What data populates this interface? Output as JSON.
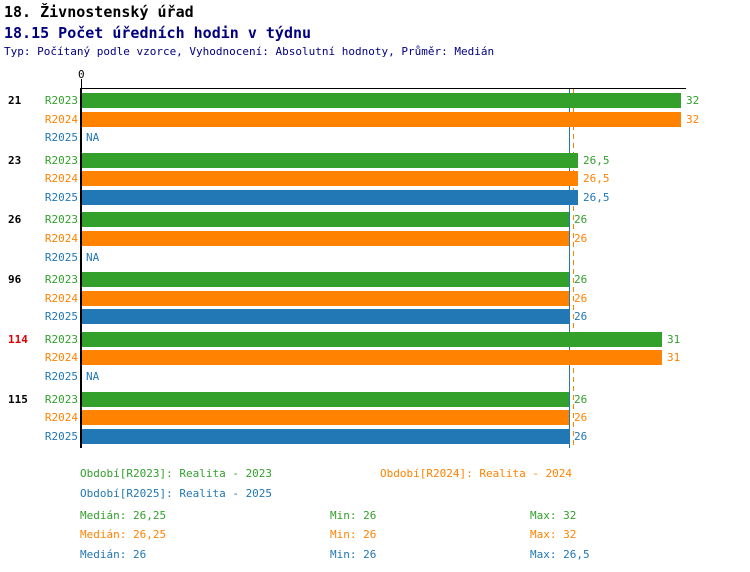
{
  "header": {
    "title": "18. Živnostenský úřad",
    "subtitle": "18.15 Počet úředních hodin v týdnu",
    "meta": "Typ: Počítaný podle vzorce, Vyhodnocení: Absolutní hodnoty, Průměr: Medián"
  },
  "chart_data": {
    "type": "bar",
    "orientation": "horizontal",
    "title": "18.15 Počet úředních hodin v týdnu",
    "x_axis": {
      "min": 0,
      "max": 32.2,
      "origin_label": "0",
      "gridlines": false
    },
    "legend_position": "bottom",
    "series": [
      {
        "id": "R2023",
        "label": "R2023",
        "color": "#33a02c",
        "legend": "Období[R2023]: Realita - 2023",
        "median_value": 26.25,
        "median_line_style": "dashed",
        "stats": {
          "median": "Medián: 26,25",
          "min": "Min: 26",
          "max": "Max: 32"
        }
      },
      {
        "id": "R2024",
        "label": "R2024",
        "color": "#ff8200",
        "legend": "Období[R2024]: Realita - 2024",
        "median_value": 26.25,
        "median_line_style": "dashed",
        "stats": {
          "median": "Medián: 26,25",
          "min": "Min: 26",
          "max": "Max: 32"
        }
      },
      {
        "id": "R2025",
        "label": "R2025",
        "color": "#2277b5",
        "legend": "Období[R2025]: Realita - 2025",
        "median_value": 26,
        "median_line_style": "solid",
        "stats": {
          "median": "Medián: 26",
          "min": "Min: 26",
          "max": "Max: 26,5"
        }
      }
    ],
    "groups": [
      {
        "label": "21",
        "label_color": "#000000",
        "values": [
          32,
          32,
          null
        ],
        "value_labels": [
          "32",
          "32",
          "NA"
        ]
      },
      {
        "label": "23",
        "label_color": "#000000",
        "values": [
          26.5,
          26.5,
          26.5
        ],
        "value_labels": [
          "26,5",
          "26,5",
          "26,5"
        ]
      },
      {
        "label": "26",
        "label_color": "#000000",
        "values": [
          26,
          26,
          null
        ],
        "value_labels": [
          "26",
          "26",
          "NA"
        ]
      },
      {
        "label": "96",
        "label_color": "#000000",
        "values": [
          26,
          26,
          26
        ],
        "value_labels": [
          "26",
          "26",
          "26"
        ]
      },
      {
        "label": "114",
        "label_color": "#dd0000",
        "values": [
          31,
          31,
          null
        ],
        "value_labels": [
          "31",
          "31",
          "NA"
        ]
      },
      {
        "label": "115",
        "label_color": "#000000",
        "values": [
          26,
          26,
          26
        ],
        "value_labels": [
          "26",
          "26",
          "26"
        ]
      }
    ]
  }
}
